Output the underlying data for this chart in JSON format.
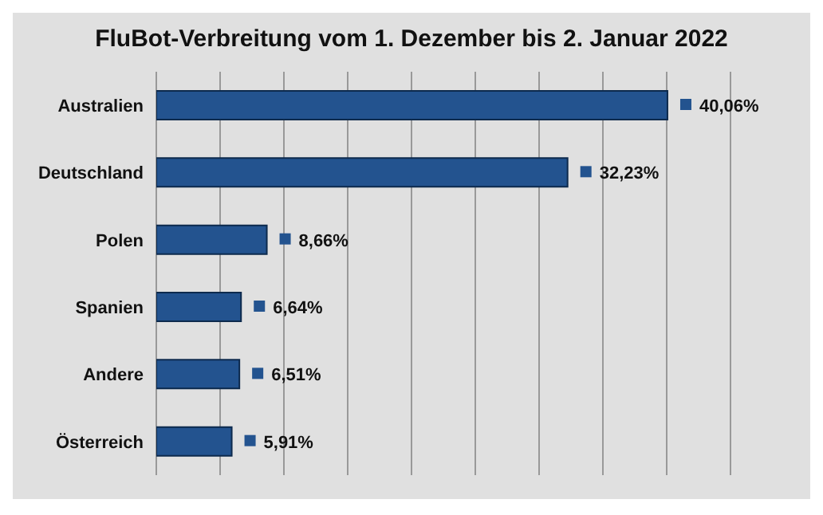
{
  "chart_data": {
    "type": "bar",
    "orientation": "horizontal",
    "title": "FluBot-Verbreitung vom 1. Dezember bis 2. Januar 2022",
    "categories": [
      "Australien",
      "Deutschland",
      "Polen",
      "Spanien",
      "Andere",
      "Österreich"
    ],
    "values": [
      40.06,
      32.23,
      8.66,
      6.64,
      6.51,
      5.91
    ],
    "value_labels": [
      "40,06%",
      "32,23%",
      "8,66%",
      "6,64%",
      "6,51%",
      "5,91%"
    ],
    "color": "#23538f",
    "xlim": [
      0,
      45
    ],
    "xticks": [
      {
        "value": 0,
        "label": null
      },
      {
        "value": 5,
        "label": null
      },
      {
        "value": 10,
        "label": null
      },
      {
        "value": 15,
        "label": null
      },
      {
        "value": 20,
        "label": null
      },
      {
        "value": 25,
        "label": null
      },
      {
        "value": 30,
        "label": null
      },
      {
        "value": 35,
        "label": null
      },
      {
        "value": 40,
        "label": null
      },
      {
        "value": 45,
        "label": null
      }
    ],
    "grid": "x",
    "tick_labels": "y"
  }
}
